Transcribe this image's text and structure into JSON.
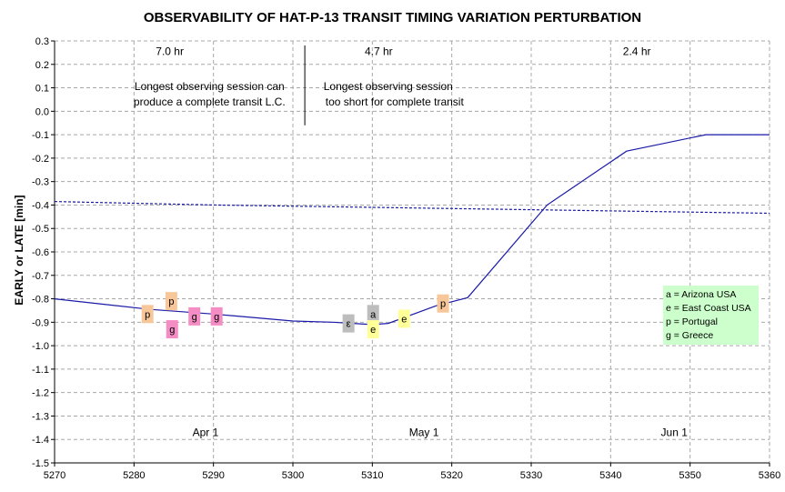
{
  "chart_data": {
    "type": "line",
    "title": "OBSERVABILITY OF HAT-P-13 TRANSIT TIMING VARIATION PERTURBATION",
    "xlabel": "",
    "ylabel": "EARLY or LATE [min]",
    "xlim": [
      5270,
      5360
    ],
    "ylim": [
      -1.5,
      0.3
    ],
    "x_ticks": [
      "5270",
      "5280",
      "5290",
      "5300",
      "5310",
      "5320",
      "5330",
      "5340",
      "5350",
      "5360"
    ],
    "y_ticks": [
      "0.3",
      "0.2",
      "0.1",
      "0.0",
      "-0.1",
      "-0.2",
      "-0.3",
      "-0.4",
      "-0.5",
      "-0.6",
      "-0.7",
      "-0.8",
      "-0.9",
      "-1.0",
      "-1.1",
      "-1.2",
      "-1.3",
      "-1.4",
      "-1.5"
    ],
    "grid": true,
    "series": [
      {
        "style": "solid",
        "color": "#1a1aa8",
        "x": [
          5270,
          5282,
          5290,
          5300,
          5305,
          5310,
          5312,
          5318,
          5322,
          5332,
          5342,
          5352,
          5360
        ],
        "y": [
          -0.8,
          -0.845,
          -0.865,
          -0.895,
          -0.9,
          -0.91,
          -0.905,
          -0.83,
          -0.795,
          -0.4,
          -0.17,
          -0.1,
          -0.1
        ]
      },
      {
        "style": "dashed",
        "color": "#1a1aa8",
        "x": [
          5270,
          5290,
          5310,
          5330,
          5350,
          5360
        ],
        "y": [
          -0.385,
          -0.4,
          -0.41,
          -0.42,
          -0.43,
          -0.435
        ]
      }
    ],
    "markers": [
      {
        "label": "p",
        "x": 5281.7,
        "y": -0.865,
        "color": "#f7c79a"
      },
      {
        "label": "p",
        "x": 5284.7,
        "y": -0.81,
        "color": "#f7c79a"
      },
      {
        "label": "g",
        "x": 5284.8,
        "y": -0.93,
        "color": "#f58dc5"
      },
      {
        "label": "g",
        "x": 5287.6,
        "y": -0.875,
        "color": "#f58dc5"
      },
      {
        "label": "g",
        "x": 5290.4,
        "y": -0.875,
        "color": "#f58dc5"
      },
      {
        "label": "ε",
        "x": 5307.0,
        "y": -0.905,
        "color": "#bdbdbd"
      },
      {
        "label": "a",
        "x": 5310.1,
        "y": -0.865,
        "color": "#bdbdbd"
      },
      {
        "label": "e",
        "x": 5310.1,
        "y": -0.93,
        "color": "#ffff99"
      },
      {
        "label": "e",
        "x": 5314.0,
        "y": -0.885,
        "color": "#ffff99"
      },
      {
        "label": "p",
        "x": 5318.9,
        "y": -0.82,
        "color": "#f7c79a"
      }
    ],
    "divider_x": 5301.5,
    "annotations": [
      {
        "text": "7.0 hr",
        "x": 5284.5,
        "y": 0.24
      },
      {
        "text": "4.7 hr",
        "x": 5310.8,
        "y": 0.24
      },
      {
        "text": "2.4 hr",
        "x": 5343.3,
        "y": 0.24
      },
      {
        "text": "Longest observing session can",
        "x": 5289.5,
        "y": 0.09
      },
      {
        "text": "produce a complete transit L.C.",
        "x": 5289.5,
        "y": 0.025
      },
      {
        "text": "Longest observing session",
        "x": 5312.0,
        "y": 0.09
      },
      {
        "text": "too short for complete transit",
        "x": 5312.8,
        "y": 0.025
      },
      {
        "text": "Apr 1",
        "x": 5289.0,
        "y": -1.385
      },
      {
        "text": "May 1",
        "x": 5316.5,
        "y": -1.385
      },
      {
        "text": "Jun 1",
        "x": 5348.0,
        "y": -1.385
      }
    ],
    "legend": {
      "placement": "right",
      "color": "#ccffcc",
      "entries": [
        "a = Arizona USA",
        "e = East Coast USA",
        "p = Portugal",
        "g = Greece"
      ]
    }
  }
}
